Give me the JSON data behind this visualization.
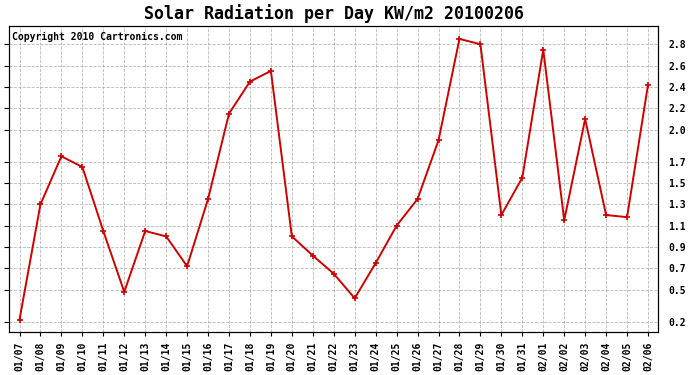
{
  "title": "Solar Radiation per Day KW/m2 20100206",
  "copyright_text": "Copyright 2010 Cartronics.com",
  "dates": [
    "01/07",
    "01/08",
    "01/09",
    "01/10",
    "01/11",
    "01/12",
    "01/13",
    "01/14",
    "01/15",
    "01/16",
    "01/17",
    "01/18",
    "01/19",
    "01/20",
    "01/21",
    "01/22",
    "01/23",
    "01/24",
    "01/25",
    "01/26",
    "01/27",
    "01/28",
    "01/29",
    "01/30",
    "01/31",
    "02/01",
    "02/02",
    "02/03",
    "02/04",
    "02/05",
    "02/06"
  ],
  "values": [
    0.22,
    1.3,
    1.75,
    1.65,
    1.05,
    0.48,
    1.05,
    1.0,
    0.72,
    1.35,
    2.15,
    2.45,
    2.55,
    1.0,
    0.82,
    0.65,
    0.42,
    0.75,
    1.1,
    1.35,
    1.9,
    2.85,
    2.8,
    1.2,
    1.55,
    2.75,
    1.15,
    2.1,
    1.2,
    1.18,
    2.42
  ],
  "line_color": "#cc0000",
  "marker": "+",
  "marker_size": 5,
  "marker_lw": 1.2,
  "line_width": 1.4,
  "ylim": [
    0.1,
    2.97
  ],
  "yticks": [
    0.2,
    0.5,
    0.7,
    0.9,
    1.1,
    1.3,
    1.5,
    1.7,
    2.0,
    2.2,
    2.4,
    2.6,
    2.8
  ],
  "background_color": "#ffffff",
  "grid_color": "#999999",
  "title_fontsize": 12,
  "label_fontsize": 7,
  "copyright_fontsize": 7,
  "tick_fontsize": 7
}
